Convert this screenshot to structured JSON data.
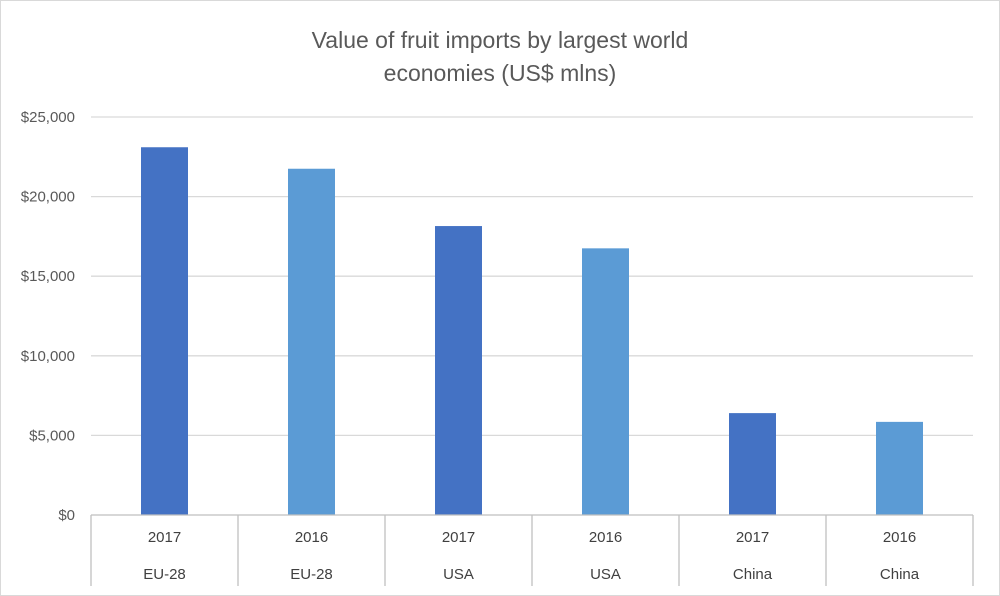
{
  "chart_data": {
    "type": "bar",
    "title": "Value of fruit imports by largest world economies (US$ mlns)",
    "title_lines": [
      "Value of fruit imports by largest world",
      "economies (US$ mlns)"
    ],
    "xlabel": "",
    "ylabel": "",
    "ylim": [
      0,
      25000
    ],
    "y_ticks": [
      0,
      5000,
      10000,
      15000,
      20000,
      25000
    ],
    "y_tick_labels": [
      "$0",
      "$5,000",
      "$10,000",
      "$15,000",
      "$20,000",
      "$25,000"
    ],
    "grid": true,
    "legend": "none",
    "categories": [
      {
        "year": "2017",
        "economy": "EU-28"
      },
      {
        "year": "2016",
        "economy": "EU-28"
      },
      {
        "year": "2017",
        "economy": "USA"
      },
      {
        "year": "2016",
        "economy": "USA"
      },
      {
        "year": "2017",
        "economy": "China"
      },
      {
        "year": "2016",
        "economy": "China"
      }
    ],
    "values": [
      23100,
      21750,
      18150,
      16750,
      6400,
      5850
    ],
    "colors": {
      "2017": "#4472c4",
      "2016": "#5b9bd5",
      "gridline": "#d9d9d9",
      "axis": "#bfbfbf"
    }
  }
}
